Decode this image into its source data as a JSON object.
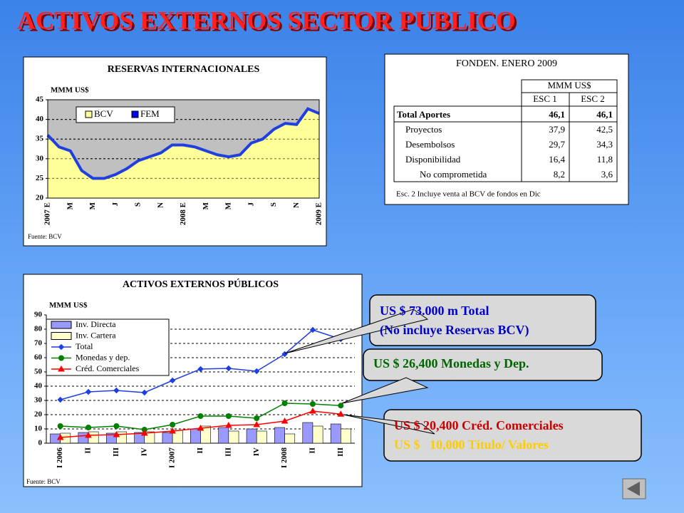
{
  "title": "ACTIVOS EXTERNOS SECTOR PUBLICO",
  "chart_data": [
    {
      "type": "area",
      "title": "RESERVAS INTERNACIONALES",
      "y_label": "MMM US$",
      "source": "Fuente: BCV",
      "categories": [
        "2007 E",
        null,
        "M",
        null,
        "M",
        null,
        "J",
        null,
        "S",
        null,
        "N",
        null,
        "2008 E",
        null,
        "M",
        null,
        "M",
        null,
        "J",
        null,
        "S",
        null,
        "N",
        null,
        "2009 E"
      ],
      "values": [
        36,
        33,
        32,
        27,
        25,
        25,
        26,
        27.5,
        29.5,
        30.5,
        31.5,
        33.5,
        33.5,
        33,
        32,
        31,
        30.5,
        31,
        34,
        35,
        37.5,
        39,
        38.7,
        42.7,
        41.5
      ],
      "legend": [
        {
          "name": "BCV",
          "color": "#ffff99"
        },
        {
          "name": "FEM",
          "color": "#0000ff"
        }
      ],
      "area_color": "#ffff99",
      "line_color": "#1f3fe0",
      "ylim": [
        20,
        45
      ],
      "yticks": [
        20,
        25,
        30,
        35,
        40,
        45
      ],
      "grid": true
    },
    {
      "type": "bar",
      "title": "ACTIVOS EXTERNOS PÚBLICOS",
      "y_label": "MMM US$",
      "source": "Fuente: BCV",
      "categories": [
        "I 2006",
        "II",
        "III",
        "IV",
        "I 2007",
        "II",
        "III",
        "IV",
        "I 2008",
        "II",
        "III"
      ],
      "series": [
        {
          "name": "Inv. Directa",
          "color": "#9999ff",
          "kind": "bar",
          "values": [
            6.5,
            7.5,
            7,
            7.5,
            7.5,
            10,
            11,
            10,
            11,
            14.5,
            13.5
          ]
        },
        {
          "name": "Inv. Cartera",
          "color": "#ffffcc",
          "kind": "bar",
          "values": [
            7,
            8,
            8,
            8,
            9,
            12,
            8.5,
            8.5,
            6.5,
            12,
            10
          ]
        },
        {
          "name": "Total",
          "color": "#1f3fe0",
          "kind": "line",
          "marker": "diamond",
          "values": [
            30.5,
            36,
            37,
            35.5,
            44,
            52,
            52.5,
            50.5,
            62.5,
            79.5,
            73
          ]
        },
        {
          "name": "Monedas y dep.",
          "color": "#008000",
          "kind": "line",
          "marker": "circle",
          "values": [
            12,
            11,
            12,
            9.5,
            13,
            19,
            19,
            17.5,
            28,
            27.5,
            26.4
          ]
        },
        {
          "name": "Créd. Comerciales",
          "color": "#ff0000",
          "kind": "line",
          "marker": "triangle",
          "values": [
            4,
            5.5,
            6,
            7,
            8.5,
            10.5,
            12.5,
            13,
            15.5,
            22.5,
            20.4
          ]
        }
      ],
      "ylim": [
        0,
        90
      ],
      "yticks": [
        0,
        10,
        20,
        30,
        40,
        50,
        60,
        70,
        80,
        90
      ],
      "grid": true
    }
  ],
  "table": {
    "title": "FONDEN. ENERO 2009",
    "unit": "MMM US$",
    "columns": [
      "ESC 1",
      "ESC 2"
    ],
    "rows": [
      [
        "Total Aportes",
        "46,1",
        "46,1"
      ],
      [
        "Proyectos",
        "37,9",
        "42,5"
      ],
      [
        "Desembolsos",
        "29,7",
        "34,3"
      ],
      [
        "Disponibilidad",
        "16,4",
        "11,8"
      ],
      [
        "No comprometida",
        "8,2",
        "3,6"
      ]
    ],
    "note": "Esc. 2 Incluye venta al BCV de fondos en Dic"
  },
  "callouts": [
    [
      "US $ 73.000 m Total",
      "(No incluye Reservas BCV)"
    ],
    [
      "US $ 26,400 Monedas y Dep."
    ],
    [
      "US $ 20,400 Créd. Comerciales",
      "US $   10,000 Título/ Valores"
    ]
  ]
}
